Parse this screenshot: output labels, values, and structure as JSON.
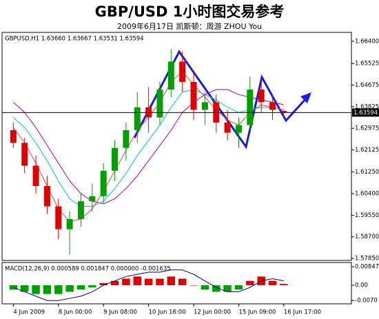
{
  "chart_data": {
    "type": "candlestick",
    "title": "GBP/USD 1小时图交易参考",
    "subtitle": "2009年6月17日 凯斯顿：周游 ZHOU You",
    "header": "GBPUSD,H1 1.63660 1.63667 1.63531 1.63594",
    "x": [
      0,
      1,
      2,
      3,
      4,
      5,
      6,
      7,
      8,
      9,
      10,
      11,
      12,
      13,
      14,
      15,
      16,
      17,
      18,
      19,
      20,
      21,
      22,
      23,
      24
    ],
    "xlim": [
      -1,
      30
    ],
    "xticks": [
      {
        "value": 0,
        "label": "4 Jun 2009"
      },
      {
        "value": 4,
        "label": "8 Jun 00:00"
      },
      {
        "value": 8,
        "label": "9 Jun 08:00"
      },
      {
        "value": 12,
        "label": "10 Jun 16:00"
      },
      {
        "value": 16,
        "label": "12 Jun 00:00"
      },
      {
        "value": 20,
        "label": "15 Jun 09:00"
      },
      {
        "value": 24,
        "label": "16 Jun 17:00"
      }
    ],
    "open": [
      1.629,
      1.624,
      1.615,
      1.607,
      1.599,
      1.59,
      1.594,
      1.601,
      1.603,
      1.613,
      1.622,
      1.629,
      1.638,
      1.634,
      1.645,
      1.656,
      1.648,
      1.637,
      1.64,
      1.632,
      1.628,
      1.631,
      1.645,
      1.64,
      1.6366
    ],
    "high": [
      1.632,
      1.626,
      1.619,
      1.611,
      1.602,
      1.597,
      1.604,
      1.608,
      1.616,
      1.625,
      1.632,
      1.644,
      1.646,
      1.648,
      1.661,
      1.66,
      1.652,
      1.644,
      1.643,
      1.637,
      1.634,
      1.65,
      1.649,
      1.643,
      1.63667
    ],
    "low": [
      1.622,
      1.612,
      1.604,
      1.596,
      1.586,
      1.58,
      1.591,
      1.597,
      1.6,
      1.609,
      1.617,
      1.624,
      1.628,
      1.631,
      1.642,
      1.644,
      1.633,
      1.631,
      1.628,
      1.625,
      1.622,
      1.629,
      1.636,
      1.633,
      1.63531
    ],
    "close": [
      1.624,
      1.615,
      1.607,
      1.599,
      1.59,
      1.594,
      1.601,
      1.603,
      1.613,
      1.622,
      1.629,
      1.638,
      1.634,
      1.645,
      1.656,
      1.648,
      1.637,
      1.64,
      1.632,
      1.628,
      1.631,
      1.645,
      1.64,
      1.637,
      1.63594
    ],
    "up_color": "#00a000",
    "down_color": "#e00000",
    "series": [
      {
        "color": "#b000b0",
        "values": [
          1.64,
          1.636,
          1.63,
          1.623,
          1.616,
          1.609,
          1.604,
          1.601,
          1.6,
          1.602,
          1.606,
          1.611,
          1.617,
          1.623,
          1.629,
          1.636,
          1.64,
          1.643,
          1.645,
          1.645,
          1.643,
          1.642,
          1.641,
          1.64,
          1.639
        ]
      },
      {
        "color": "#00c8c8",
        "values": [
          1.634,
          1.63,
          1.624,
          1.617,
          1.609,
          1.602,
          1.599,
          1.599,
          1.601,
          1.606,
          1.612,
          1.619,
          1.625,
          1.631,
          1.638,
          1.644,
          1.645,
          1.643,
          1.641,
          1.638,
          1.636,
          1.637,
          1.638,
          1.638,
          1.637
        ]
      },
      {
        "color": "#ff4040",
        "values": [
          1.63,
          1.624,
          1.616,
          1.607,
          1.598,
          1.593,
          1.594,
          1.598,
          1.605,
          1.613,
          1.621,
          1.629,
          1.634,
          1.64,
          1.648,
          1.652,
          1.647,
          1.642,
          1.637,
          1.633,
          1.631,
          1.636,
          1.639,
          1.638,
          1.637
        ]
      }
    ],
    "ylim": [
      1.5777,
      1.6675
    ],
    "yticks": [
      {
        "value": 1.664,
        "label": "1.66400"
      },
      {
        "value": 1.65525,
        "label": "1.65525"
      },
      {
        "value": 1.64675,
        "label": "1.64675"
      },
      {
        "value": 1.63825,
        "label": "1.63825"
      },
      {
        "value": 1.62975,
        "label": "1.62975"
      },
      {
        "value": 1.62125,
        "label": "1.62125"
      },
      {
        "value": 1.6125,
        "label": "1.61250"
      },
      {
        "value": 1.604,
        "label": "1.60400"
      },
      {
        "value": 1.5955,
        "label": "1.59550"
      },
      {
        "value": 1.587,
        "label": "1.58700"
      },
      {
        "value": 1.5785,
        "label": "1.57850"
      }
    ],
    "current_price": 1.63594,
    "macd": {
      "label": "MACD(12,26,9) 0.000589 0.001847 0.000000 -0.001635",
      "histogram": [
        -0.002,
        -0.003,
        -0.004,
        -0.004,
        -0.004,
        -0.003,
        -0.002,
        -0.001,
        0.001,
        0.002,
        0.003,
        0.004,
        0.003,
        0.003,
        0.004,
        0.003,
        0.0,
        -0.002,
        -0.003,
        -0.003,
        -0.002,
        0.002,
        0.004,
        0.002,
        0.0006
      ],
      "line": [
        -0.001,
        -0.003,
        -0.005,
        -0.007,
        -0.007,
        -0.006,
        -0.005,
        -0.003,
        0.0,
        0.002,
        0.004,
        0.005,
        0.006,
        0.006,
        0.007,
        0.007,
        0.005,
        0.002,
        -0.001,
        -0.003,
        -0.003,
        -0.001,
        0.002,
        0.003,
        0.002
      ],
      "line_color": "#000080",
      "up_color": "#e00000",
      "down_color": "#00a000",
      "ylim": [
        -0.0085,
        0.0104
      ],
      "yticks": [
        0.00847,
        {
          "value": 0,
          "label": "0.00"
        },
        {
          "value": -0.007,
          "label": "-0.0070"
        }
      ]
    }
  }
}
